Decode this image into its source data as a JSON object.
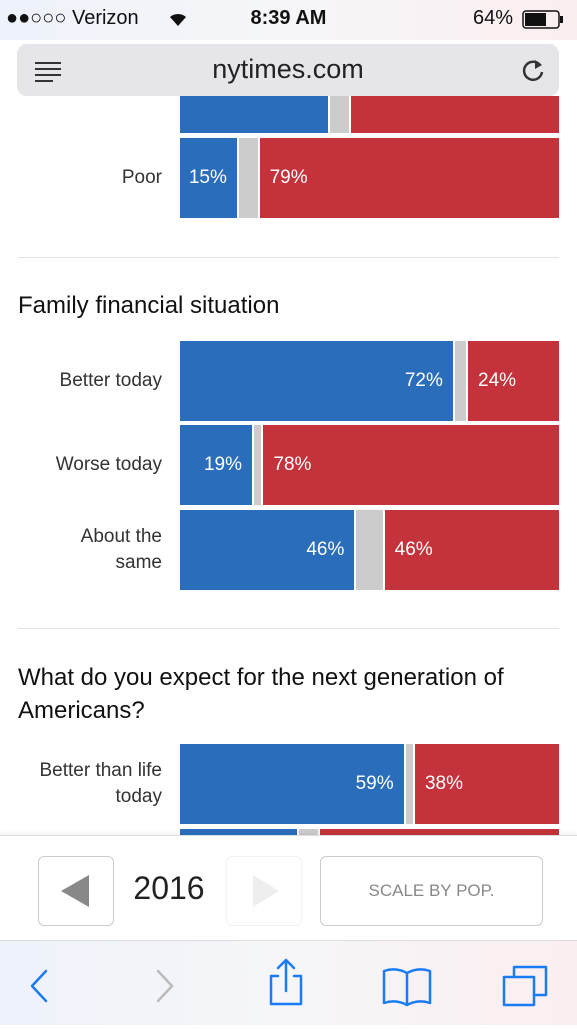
{
  "status_bar": {
    "carrier": "●●○○○ Verizon",
    "time": "8:39 AM",
    "battery": "64%"
  },
  "address_bar": {
    "url": "nytimes.com"
  },
  "chart": {
    "xlim": [
      0,
      100
    ],
    "sections": [
      {
        "categories": [
          null,
          "Poor"
        ],
        "dem": [
          39,
          15
        ],
        "dem_labels": [
          null,
          "15%"
        ],
        "rep": [
          55,
          79
        ],
        "rep_labels": [
          null,
          "79%"
        ]
      },
      {
        "title": "Family financial situation",
        "categories": [
          "Better today",
          "Worse today",
          "About the\nsame"
        ],
        "dem": [
          72,
          19,
          46
        ],
        "dem_labels": [
          "72%",
          "19%",
          "46%"
        ],
        "rep": [
          24,
          78,
          46
        ],
        "rep_labels": [
          "24%",
          "78%",
          "46%"
        ]
      },
      {
        "title": "What do you expect for the next generation of Americans?",
        "categories": [
          "Better than life\ntoday",
          null
        ],
        "dem": [
          59,
          31
        ],
        "dem_labels": [
          "59%",
          null
        ],
        "rep": [
          38,
          63
        ],
        "rep_labels": [
          "38%",
          null
        ]
      }
    ]
  },
  "year_bar": {
    "year": "2016",
    "scale_button": "SCALE BY POP."
  }
}
